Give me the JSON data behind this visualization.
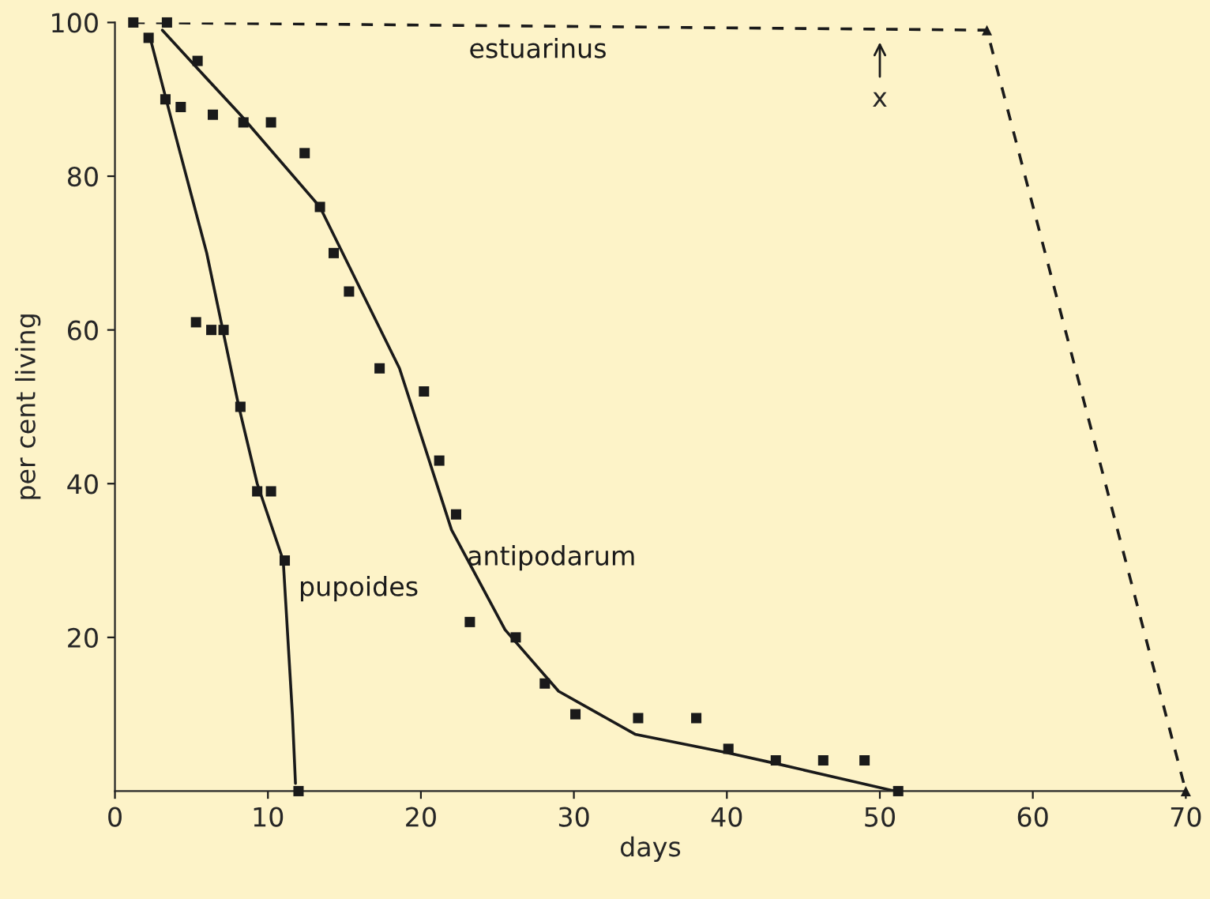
{
  "chart_data": {
    "type": "line",
    "xlabel": "days",
    "ylabel": "per cent living",
    "xlim": [
      0,
      70
    ],
    "ylim": [
      0,
      100
    ],
    "xticks": [
      0,
      10,
      20,
      30,
      40,
      50,
      60,
      70
    ],
    "yticks": [
      20,
      40,
      60,
      80,
      100
    ],
    "grid": false,
    "legend": false,
    "series": [
      {
        "name": "estuarinus",
        "line_style": "dashed",
        "marker": "none",
        "color": "#1a1a1a",
        "x": [
          1.2,
          57,
          70
        ],
        "values": [
          100,
          99,
          0
        ]
      },
      {
        "type": "scatter",
        "marker": "triangle",
        "color": "#1a1a1a",
        "x": [
          57,
          70
        ],
        "values": [
          99,
          0
        ]
      },
      {
        "name": "antipodarum",
        "line_style": "solid",
        "marker": "none",
        "color": "#1a1a1a",
        "x": [
          3.1,
          5.4,
          8.2,
          13.4,
          18.6,
          22,
          25.5,
          29,
          34,
          40,
          43.4,
          51
        ],
        "values": [
          99,
          94,
          88,
          76,
          55,
          34,
          21,
          13,
          7.4,
          5,
          3.5,
          0
        ]
      },
      {
        "type": "scatter",
        "marker": "square",
        "color": "#1a1a1a",
        "x": [
          1.2,
          3.4,
          2.2,
          5.4,
          3.3,
          4.3,
          6.4,
          8.4,
          10.2,
          12.4,
          13.4,
          14.3,
          15.3,
          17.3,
          20.2,
          21.2,
          22.3,
          23.2,
          26.2,
          28.1,
          30.1,
          34.2,
          38,
          40.1,
          43.2,
          46.3,
          49,
          51.2
        ],
        "values": [
          100,
          100,
          98,
          95,
          90,
          89,
          88,
          87,
          87,
          83,
          76,
          70,
          65,
          55,
          52,
          43,
          36,
          22,
          20,
          14,
          10,
          9.5,
          9.5,
          5.5,
          4,
          4,
          4,
          0
        ]
      },
      {
        "name": "pupoides",
        "line_style": "solid",
        "marker": "none",
        "color": "#1a1a1a",
        "x": [
          2.3,
          4,
          6,
          8.1,
          9.3,
          11,
          11.6,
          11.8
        ],
        "values": [
          98,
          85,
          70,
          50,
          40,
          30,
          10,
          1
        ]
      },
      {
        "type": "scatter",
        "marker": "square",
        "color": "#1a1a1a",
        "x": [
          5.3,
          6.3,
          7.1,
          8.2,
          9.3,
          10.2,
          11.1,
          12
        ],
        "values": [
          61,
          60,
          60,
          50,
          39,
          39,
          30,
          0
        ]
      }
    ],
    "annotations": [
      {
        "text": "x",
        "x": 50,
        "y": 99
      }
    ]
  }
}
